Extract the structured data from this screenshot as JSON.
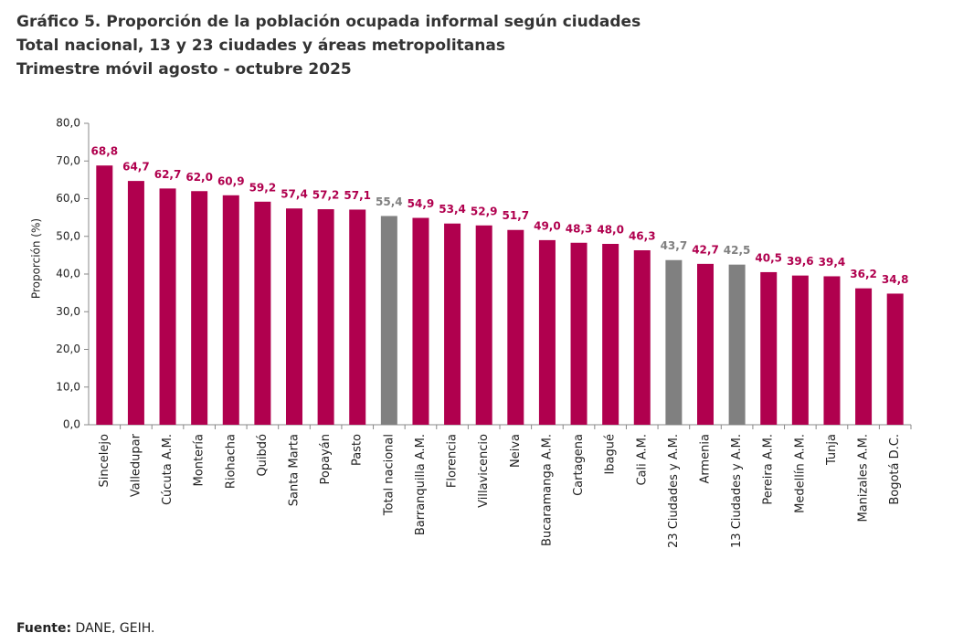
{
  "chart_data": {
    "type": "bar",
    "title": [
      "Gráfico 5. Proporción de la población ocupada informal según ciudades",
      "Total nacional, 13 y 23 ciudades y áreas metropolitanas",
      "Trimestre móvil agosto - octubre 2025"
    ],
    "y_label": "Proporción (%)",
    "categories": [
      "Sincelejo",
      "Valledupar",
      "Cúcuta A.M.",
      "Montería",
      "Riohacha",
      "Quibdó",
      "Santa Marta",
      "Popayán",
      "Pasto",
      "Total nacional",
      "Barranquilla A.M.",
      "Florencia",
      "Villavicencio",
      "Neiva",
      "Bucaramanga A.M.",
      "Cartagena",
      "Ibagué",
      "Cali A.M.",
      "23 Ciudades y A.M.",
      "Armenia",
      "13 Ciudades y A.M.",
      "Pereira A.M.",
      "Medellín A.M.",
      "Tunja",
      "Manizales A.M.",
      "Bogotá D.C."
    ],
    "values": [
      68.8,
      64.7,
      62.7,
      62.0,
      60.9,
      59.2,
      57.4,
      57.2,
      57.1,
      55.4,
      54.9,
      53.4,
      52.9,
      51.7,
      49.0,
      48.3,
      48.0,
      46.3,
      43.7,
      42.7,
      42.5,
      40.5,
      39.6,
      39.4,
      36.2,
      34.8
    ],
    "value_labels": [
      "68,8",
      "64,7",
      "62,7",
      "62,0",
      "60,9",
      "59,2",
      "57,4",
      "57,2",
      "57,1",
      "55,4",
      "54,9",
      "53,4",
      "52,9",
      "51,7",
      "49,0",
      "48,3",
      "48,0",
      "46,3",
      "43,7",
      "42,7",
      "42,5",
      "40,5",
      "39,6",
      "39,4",
      "36,2",
      "34,8"
    ],
    "colors": [
      "#b0004e",
      "#b0004e",
      "#b0004e",
      "#b0004e",
      "#b0004e",
      "#b0004e",
      "#b0004e",
      "#b0004e",
      "#b0004e",
      "#808080",
      "#b0004e",
      "#b0004e",
      "#b0004e",
      "#b0004e",
      "#b0004e",
      "#b0004e",
      "#b0004e",
      "#b0004e",
      "#808080",
      "#b0004e",
      "#808080",
      "#b0004e",
      "#b0004e",
      "#b0004e",
      "#b0004e",
      "#b0004e"
    ],
    "ylim": [
      0,
      80
    ],
    "yticks": [
      {
        "value": 0,
        "label": "0,0"
      },
      {
        "value": 10,
        "label": "10,0"
      },
      {
        "value": 20,
        "label": "20,0"
      },
      {
        "value": 30,
        "label": "30,0"
      },
      {
        "value": 40,
        "label": "40,0"
      },
      {
        "value": 50,
        "label": "50,0"
      },
      {
        "value": 60,
        "label": "60,0"
      },
      {
        "value": 70,
        "label": "70,0"
      },
      {
        "value": 80,
        "label": "80,0"
      }
    ],
    "source_label": "Fuente:",
    "source": "DANE, GEIH."
  }
}
